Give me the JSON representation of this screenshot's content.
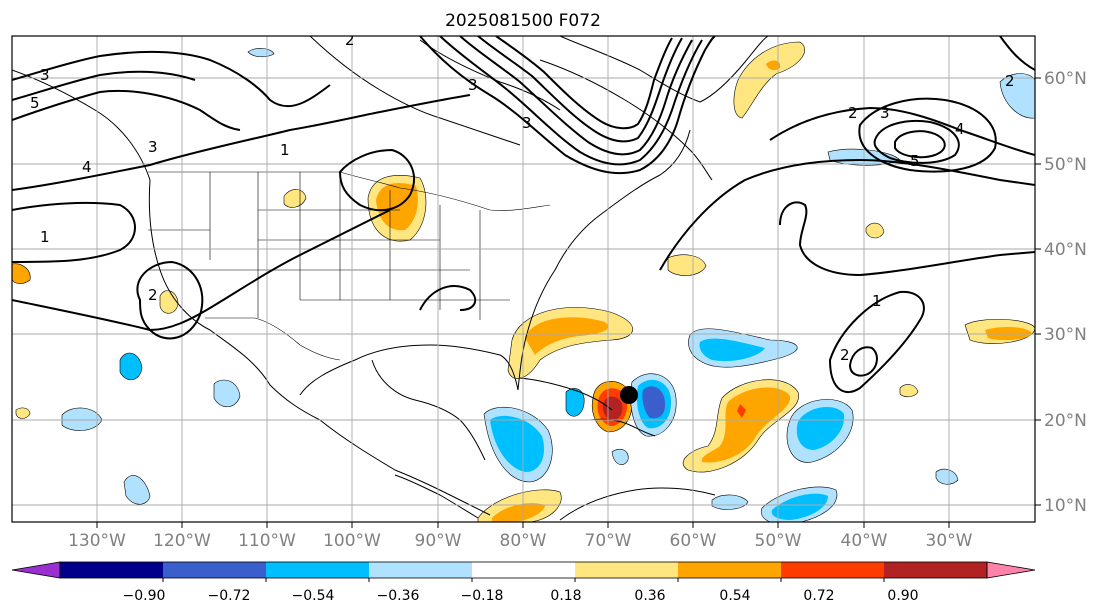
{
  "title": "2025081500 F072",
  "lon_labels": [
    "130°W",
    "120°W",
    "110°W",
    "100°W",
    "90°W",
    "80°W",
    "70°W",
    "60°W",
    "50°W",
    "40°W",
    "30°W"
  ],
  "lat_labels": [
    "60°N",
    "50°N",
    "40°N",
    "30°N",
    "20°N",
    "10°N"
  ],
  "colorbar": {
    "ticks": [
      "−0.90",
      "−0.72",
      "−0.54",
      "−0.36",
      "−0.18",
      "0.18",
      "0.36",
      "0.54",
      "0.72",
      "0.90"
    ],
    "colors": [
      "#9b30d0",
      "#00008b",
      "#3a5fcd",
      "#00bfff",
      "#b0e2ff",
      "#ffffff",
      "#ffe680",
      "#ffa500",
      "#ff3c00",
      "#b22222",
      "#ff82ab"
    ]
  },
  "contour_labels": [
    "1",
    "2",
    "3",
    "4",
    "5"
  ],
  "colors": {
    "axis_label": "#808080",
    "grid": "#aaaaaa",
    "coast": "#000000",
    "contour": "#000000",
    "storm_marker": "#000000"
  }
}
